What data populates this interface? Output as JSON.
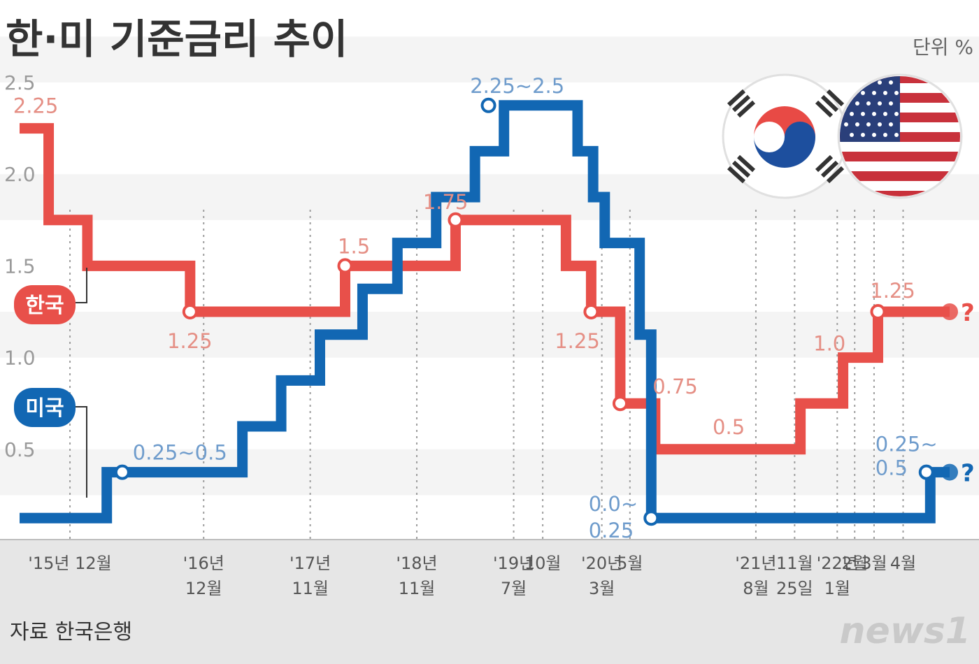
{
  "title": "한·미 기준금리 추이",
  "unit": "단위 %",
  "source": "자료 한국은행",
  "logo": "news1",
  "colors": {
    "korea": "#e8504a",
    "usa": "#1267b3",
    "korea_label": "#e58f85",
    "usa_label": "#6f9ccc",
    "band": "#f4f4f4",
    "footer": "#e6e6e6"
  },
  "chart_data": {
    "type": "line",
    "step": true,
    "ylim": [
      0,
      2.5
    ],
    "yticks": [
      "0.5",
      "1.0",
      "1.5",
      "2.0",
      "2.5"
    ],
    "xticks": [
      {
        "lines": [
          "'15년 12월"
        ],
        "t": 2.6
      },
      {
        "lines": [
          "'16년",
          "12월"
        ],
        "t": 9.5
      },
      {
        "lines": [
          "'17년",
          "11월"
        ],
        "t": 15
      },
      {
        "lines": [
          "'18년",
          "11월"
        ],
        "t": 20.5
      },
      {
        "lines": [
          "'19년",
          "7월"
        ],
        "t": 25.5
      },
      {
        "lines": [
          "10월"
        ],
        "t": 27
      },
      {
        "lines": [
          "'20년",
          "3월"
        ],
        "t": 30.05
      },
      {
        "lines": [
          "5월"
        ],
        "t": 31.5
      },
      {
        "lines": [
          "'21년",
          "8월"
        ],
        "t": 38
      },
      {
        "lines": [
          "11월",
          "25일"
        ],
        "t": 40
      },
      {
        "lines": [
          "'22년",
          "1월"
        ],
        "t": 42.2
      },
      {
        "lines": [
          "2월"
        ],
        "t": 43.1
      },
      {
        "lines": [
          "3월"
        ],
        "t": 44.1
      },
      {
        "lines": [
          "4월"
        ],
        "t": 45.6
      }
    ],
    "series": [
      {
        "name": "한국",
        "points": [
          [
            0,
            2.25
          ],
          [
            1.5,
            1.75
          ],
          [
            3.5,
            1.5
          ],
          [
            8.8,
            1.25
          ],
          [
            16.8,
            1.5
          ],
          [
            22.5,
            1.75
          ],
          [
            28.2,
            1.5
          ],
          [
            29.5,
            1.25
          ],
          [
            31.0,
            0.75
          ],
          [
            32.8,
            0.5
          ],
          [
            40.3,
            0.75
          ],
          [
            42.5,
            1.0
          ],
          [
            44.3,
            1.25
          ],
          [
            48.0,
            1.25
          ]
        ],
        "markers": [
          [
            8.8,
            1.25
          ],
          [
            16.8,
            1.5
          ],
          [
            22.5,
            1.75
          ],
          [
            29.5,
            1.25
          ],
          [
            31.0,
            0.75
          ],
          [
            44.3,
            1.25
          ]
        ],
        "end_marker": [
          48.0,
          1.25
        ],
        "value_labels": [
          {
            "text": "2.25",
            "t": 0.1,
            "y": 2.25
          },
          {
            "text": "1.25",
            "t": 8.7,
            "y": 1.25
          },
          {
            "text": "1.5",
            "t": 17.0,
            "y": 1.5
          },
          {
            "text": "1.75",
            "t": 21.9,
            "y": 1.75
          },
          {
            "text": "1.25",
            "t": 28.7,
            "y": 1.25
          },
          {
            "text": "0.75",
            "t": 32.6,
            "y": 0.75
          },
          {
            "text": "0.5",
            "t": 36.2,
            "y": 0.5
          },
          {
            "text": "1.0",
            "t": 41.4,
            "y": 1.0
          },
          {
            "text": "1.25",
            "t": 44.4,
            "y": 1.25
          }
        ]
      },
      {
        "name": "미국",
        "points": [
          [
            0,
            0.125
          ],
          [
            4.5,
            0.375
          ],
          [
            11.5,
            0.625
          ],
          [
            13.5,
            0.875
          ],
          [
            15.5,
            1.125
          ],
          [
            17.7,
            1.375
          ],
          [
            19.5,
            1.625
          ],
          [
            21.5,
            1.875
          ],
          [
            23.5,
            2.125
          ],
          [
            25,
            2.375
          ],
          [
            28.8,
            2.125
          ],
          [
            29.6,
            1.875
          ],
          [
            30.2,
            1.625
          ],
          [
            32.0,
            1.125
          ],
          [
            32.6,
            0.125
          ],
          [
            47.0,
            0.375
          ],
          [
            48.0,
            0.375
          ]
        ],
        "markers": [
          [
            5.3,
            0.375
          ],
          [
            24.2,
            2.375
          ],
          [
            32.6,
            0.125
          ],
          [
            46.8,
            0.375
          ]
        ],
        "end_marker": [
          48.0,
          0.375
        ],
        "value_labels": [
          {
            "text": "0.25~0.5",
            "t": 6.2,
            "y": 0.375
          },
          {
            "text": "2.25~2.5",
            "t": 23.9,
            "y": 2.375
          },
          {
            "text": "0.0~",
            "t": 29.8,
            "y": 0.125
          },
          {
            "text": "0.25",
            "t": 29.8,
            "y": 0.125
          },
          {
            "text": "0.25~",
            "t": 44.6,
            "y": 0.375
          },
          {
            "text": "0.5",
            "t": 44.6,
            "y": 0.375
          }
        ]
      }
    ],
    "future_marker": "?",
    "legend": [
      "한국",
      "미국"
    ]
  }
}
